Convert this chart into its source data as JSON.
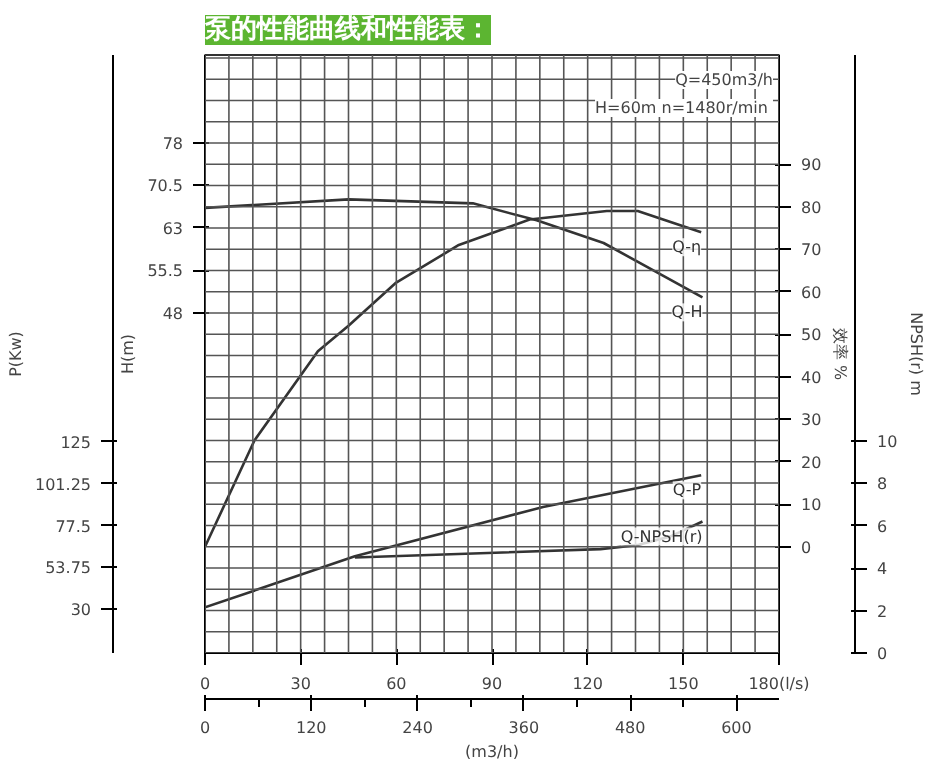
{
  "chart_data": [
    {
      "type": "line",
      "title": "泵的性能曲线和性能表：",
      "xlim": [
        0,
        180
      ],
      "xticks": [
        0,
        30,
        60,
        90,
        120,
        150,
        {
          "value": 180,
          "label": "180(l/s)"
        }
      ],
      "x2lim": [
        0,
        648
      ],
      "x2ticks": [
        0,
        120,
        240,
        360,
        480,
        600
      ],
      "x2label": "(m3/h)",
      "ylabel": "H(m)",
      "ylim": [
        -12.1,
        93.5
      ],
      "yticks": [
        48,
        55.5,
        63,
        70.5,
        78
      ],
      "y2label": "效率 %",
      "y2lim": [
        -25,
        115.7
      ],
      "y2ticks": [
        0,
        10,
        20,
        30,
        40,
        50,
        60,
        70,
        80,
        90
      ],
      "y3label": "P(Kw)",
      "y3lim": [
        5.1,
        344.7
      ],
      "y3ticks": [
        30,
        53.75,
        77.5,
        101.25,
        125
      ],
      "grid": true,
      "line_style": "solid",
      "annotations": [
        "Q=450m3/h",
        "H=60m  n=1480r/min"
      ],
      "series": [
        {
          "name": "Q-H",
          "color": "#333333",
          "x": [
            0,
            45,
            84,
            104,
            125,
            156
          ],
          "values": [
            66.5,
            68.0,
            67.3,
            64.3,
            60.3,
            50.7
          ]
        },
        {
          "name": "Q-η",
          "axis": "y2",
          "color": "#333333",
          "x": [
            0,
            15.5,
            35.4,
            45,
            59.7,
            79.6,
            101.8,
            126,
            135.7,
            155.6
          ],
          "values": [
            0,
            25,
            46,
            52,
            62,
            71,
            77,
            79,
            79,
            74
          ]
        },
        {
          "name": "Q-P",
          "axis": "y3",
          "color": "#333333",
          "x": [
            0,
            47,
            106,
            155.6
          ],
          "values": [
            31,
            60,
            88,
            106
          ]
        }
      ]
    },
    {
      "type": "line",
      "xlim": [
        0,
        180
      ],
      "ylabel": "NPSH(r) m",
      "ylim": [
        0,
        28.2
      ],
      "yticks": [
        0,
        2,
        4,
        6,
        8,
        10
      ],
      "tick_labels": "y",
      "line_style": "solid",
      "series": [
        {
          "name": "Q-NPSH(r)",
          "color": "#333333",
          "x": [
            47,
            124,
            136,
            146,
            156
          ],
          "values": [
            4.5,
            4.9,
            5.1,
            5.5,
            6.2
          ]
        }
      ]
    }
  ]
}
